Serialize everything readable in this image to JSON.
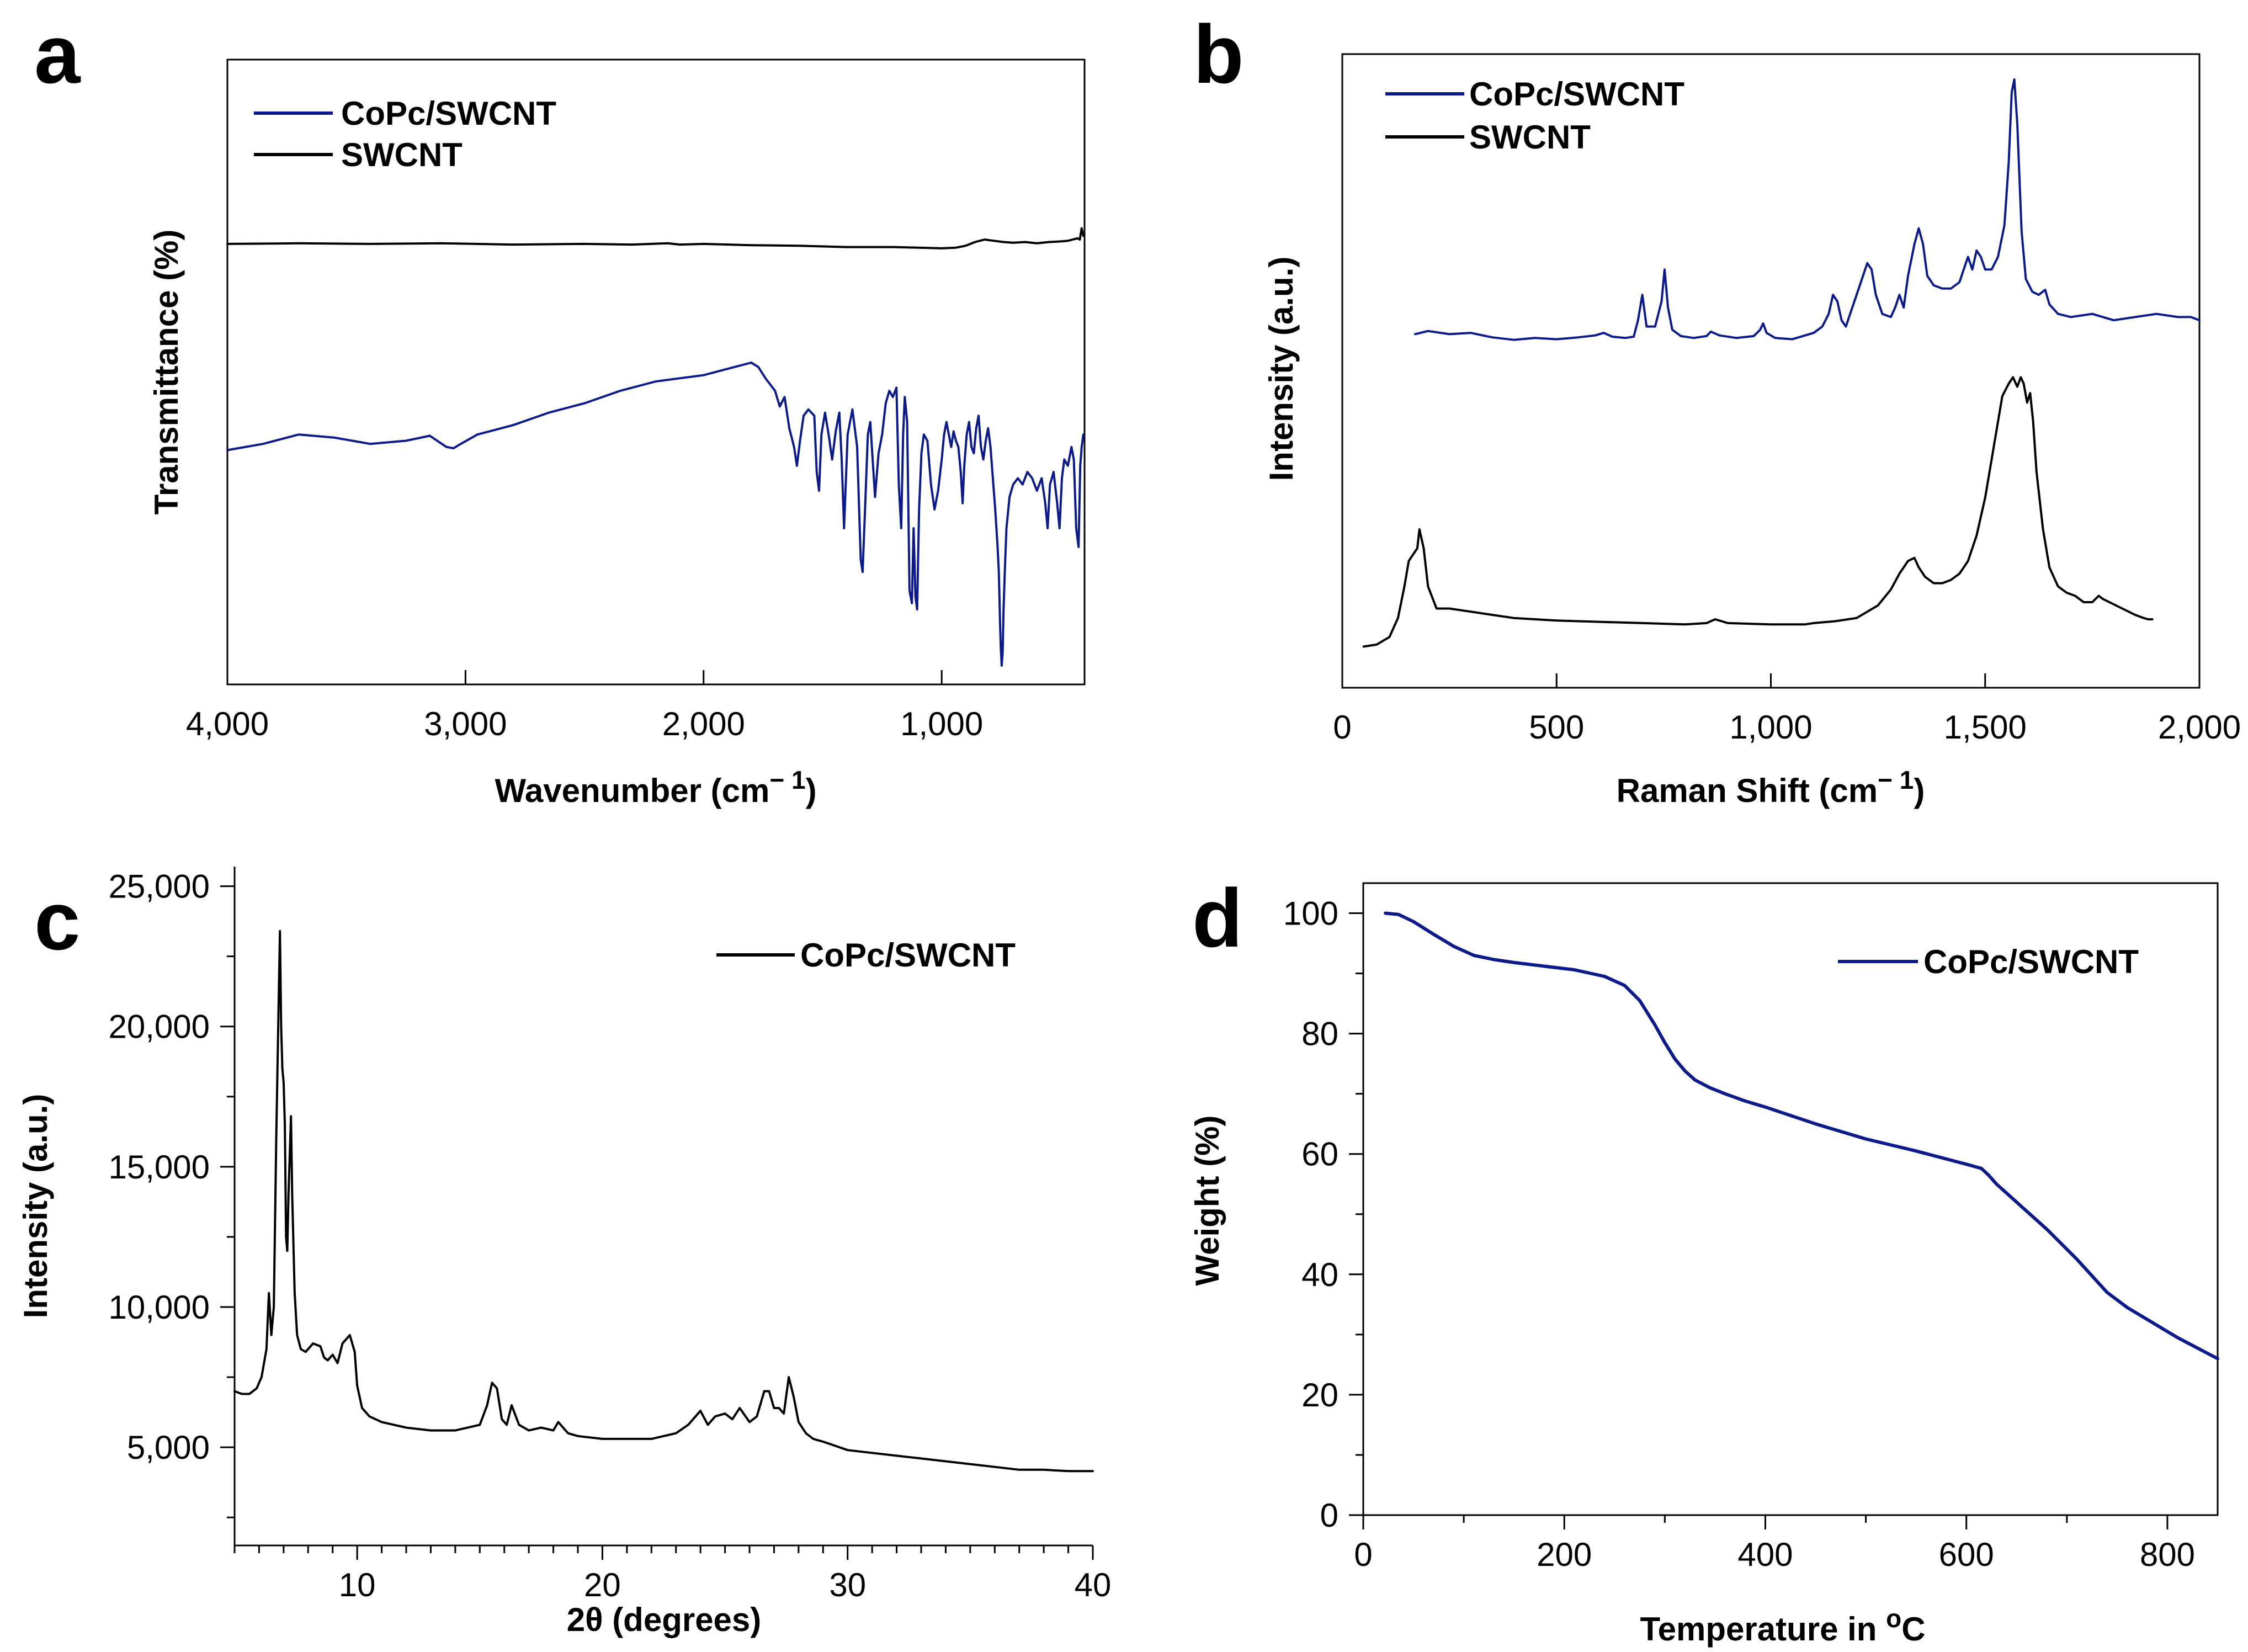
{
  "figure": {
    "panels": [
      "a",
      "b",
      "c",
      "d"
    ]
  },
  "chart_data": [
    {
      "id": "a",
      "type": "line",
      "panel_label": "a",
      "xlabel": "Wavenumber (cm",
      "xlabel_sup": "− 1",
      "xlabel_end": ")",
      "ylabel": "Transmittance (%)",
      "xlim": [
        4000,
        400
      ],
      "ylim": [
        0,
        100
      ],
      "xticks": [
        4000,
        3000,
        2000,
        1000
      ],
      "xtick_labels": [
        "4,000",
        "3,000",
        "2,000",
        "1,000"
      ],
      "yticks_shown": false,
      "legend_position": "top-left",
      "series": [
        {
          "name": "CoPc/SWCNT",
          "color": "#0c1a8a",
          "x": [
            4000,
            3850,
            3700,
            3550,
            3400,
            3250,
            3150,
            3080,
            3050,
            3020,
            2950,
            2800,
            2650,
            2500,
            2350,
            2200,
            2100,
            2000,
            1900,
            1800,
            1770,
            1740,
            1700,
            1680,
            1660,
            1640,
            1620,
            1608,
            1595,
            1580,
            1560,
            1535,
            1525,
            1515,
            1505,
            1490,
            1475,
            1460,
            1445,
            1430,
            1420,
            1410,
            1395,
            1375,
            1355,
            1340,
            1332,
            1322,
            1310,
            1300,
            1290,
            1280,
            1265,
            1250,
            1235,
            1220,
            1205,
            1190,
            1180,
            1170,
            1162,
            1155,
            1145,
            1135,
            1125,
            1118,
            1110,
            1103,
            1095,
            1085,
            1075,
            1060,
            1045,
            1030,
            1015,
            1000,
            990,
            980,
            970,
            960,
            950,
            940,
            930,
            920,
            912,
            905,
            895,
            885,
            875,
            865,
            855,
            845,
            835,
            825,
            815,
            805,
            795,
            785,
            775,
            765,
            760,
            755,
            752,
            748,
            744,
            740,
            735,
            728,
            715,
            700,
            680,
            660,
            640,
            620,
            600,
            580,
            565,
            555,
            545,
            530,
            515,
            505,
            495,
            485,
            470,
            455,
            445,
            435,
            425,
            418,
            412,
            405
          ],
          "y": [
            37.5,
            38.5,
            40.0,
            39.5,
            38.5,
            39.0,
            39.8,
            38.0,
            37.8,
            38.5,
            40.0,
            41.5,
            43.5,
            45.0,
            47.0,
            48.5,
            49.0,
            49.5,
            50.5,
            51.5,
            50.8,
            49.0,
            47.0,
            44.5,
            46.0,
            41.0,
            38.0,
            35.0,
            39.0,
            43.0,
            44.0,
            43.0,
            34.0,
            31.0,
            40.0,
            43.5,
            40.0,
            36.0,
            40.5,
            43.5,
            36.0,
            25.0,
            40.0,
            44.0,
            38.0,
            20.0,
            18.0,
            28.0,
            40.0,
            42.0,
            36.0,
            30.0,
            37.0,
            40.0,
            45.0,
            47.0,
            46.0,
            47.5,
            32.0,
            25.0,
            40.0,
            46.0,
            42.0,
            15.0,
            13.0,
            25.0,
            14.0,
            12.0,
            28.0,
            37.0,
            40.0,
            39.0,
            32.0,
            28.0,
            31.0,
            36.0,
            40.0,
            42.0,
            40.0,
            38.0,
            40.5,
            39.0,
            38.0,
            34.0,
            29.0,
            35.0,
            40.0,
            42.0,
            38.0,
            37.0,
            41.0,
            43.0,
            38.0,
            36.0,
            39.0,
            41.0,
            38.0,
            33.0,
            28.0,
            22.0,
            18.0,
            10.0,
            6.0,
            3.0,
            5.0,
            12.0,
            18.0,
            25.0,
            30.0,
            32.0,
            33.0,
            32.0,
            34.0,
            33.0,
            31.0,
            33.0,
            29.0,
            25.0,
            32.0,
            34.0,
            29.0,
            25.0,
            33.0,
            36.0,
            35.0,
            38.0,
            36.0,
            25.0,
            22.0,
            35.0,
            38.0,
            40.0
          ]
        },
        {
          "name": "SWCNT",
          "color": "#000000",
          "x": [
            4000,
            3700,
            3400,
            3100,
            2800,
            2500,
            2300,
            2150,
            2100,
            2000,
            1800,
            1600,
            1400,
            1200,
            1000,
            940,
            900,
            860,
            820,
            780,
            740,
            700,
            650,
            600,
            550,
            500,
            470,
            450,
            430,
            420,
            412,
            405
          ],
          "y": [
            70.5,
            70.6,
            70.5,
            70.6,
            70.4,
            70.5,
            70.4,
            70.6,
            70.4,
            70.5,
            70.3,
            70.2,
            70.0,
            70.0,
            69.8,
            69.9,
            70.2,
            70.8,
            71.2,
            71.0,
            70.8,
            70.7,
            70.8,
            70.6,
            70.8,
            70.9,
            71.0,
            71.2,
            71.4,
            71.2,
            73.0,
            71.8
          ]
        }
      ]
    },
    {
      "id": "b",
      "type": "line",
      "panel_label": "b",
      "xlabel": "Raman Shift (cm",
      "xlabel_sup": "− 1",
      "xlabel_end": ")",
      "ylabel": "Intensity (a.u.)",
      "xlim": [
        0,
        2000
      ],
      "ylim": [
        0,
        100
      ],
      "xticks": [
        0,
        500,
        1000,
        1500,
        2000
      ],
      "xtick_labels": [
        "0",
        "500",
        "1,000",
        "1,500",
        "2,000"
      ],
      "yticks_shown": false,
      "legend_position": "top-left",
      "series": [
        {
          "name": "CoPc/SWCNT",
          "color": "#0c1a8a",
          "x": [
            170,
            200,
            250,
            300,
            350,
            400,
            450,
            500,
            550,
            590,
            610,
            630,
            660,
            680,
            690,
            700,
            710,
            730,
            745,
            752,
            760,
            770,
            790,
            820,
            850,
            860,
            880,
            920,
            960,
            975,
            982,
            990,
            1010,
            1050,
            1100,
            1120,
            1135,
            1145,
            1155,
            1165,
            1175,
            1190,
            1210,
            1225,
            1235,
            1245,
            1260,
            1280,
            1290,
            1300,
            1310,
            1320,
            1335,
            1345,
            1355,
            1365,
            1380,
            1400,
            1420,
            1440,
            1450,
            1460,
            1470,
            1480,
            1490,
            1500,
            1515,
            1530,
            1545,
            1555,
            1562,
            1568,
            1575,
            1585,
            1595,
            1610,
            1625,
            1640,
            1650,
            1670,
            1700,
            1750,
            1800,
            1850,
            1900,
            1950,
            1980,
            2000
          ],
          "y": [
            55.8,
            56.3,
            55.8,
            56.0,
            55.3,
            54.9,
            55.2,
            55.0,
            55.3,
            55.6,
            56.0,
            55.4,
            55.2,
            55.4,
            58.0,
            62.0,
            57.0,
            57.0,
            61.0,
            66.0,
            60.0,
            56.5,
            55.5,
            55.2,
            55.5,
            56.2,
            55.6,
            55.2,
            55.5,
            56.5,
            57.5,
            56.0,
            55.2,
            55.0,
            56.0,
            57.0,
            59.0,
            62.0,
            61.0,
            58.0,
            57.0,
            60.0,
            64.0,
            67.0,
            66.0,
            62.0,
            59.0,
            58.5,
            60.0,
            62.0,
            60.0,
            65.0,
            70.0,
            72.5,
            70.0,
            65.0,
            63.5,
            63.0,
            63.0,
            64.0,
            66.0,
            68.0,
            66.0,
            69.0,
            68.0,
            66.0,
            66.0,
            68.0,
            73.0,
            83.0,
            94.0,
            96.0,
            89.0,
            72.0,
            64.5,
            62.5,
            62.0,
            62.8,
            60.5,
            59.0,
            58.5,
            59.0,
            58.0,
            58.5,
            59.0,
            58.5,
            58.5,
            58.0
          ]
        },
        {
          "name": "SWCNT",
          "color": "#000000",
          "x": [
            50,
            80,
            110,
            130,
            145,
            155,
            165,
            175,
            180,
            190,
            200,
            220,
            250,
            300,
            350,
            400,
            450,
            500,
            600,
            700,
            800,
            850,
            870,
            900,
            1000,
            1050,
            1080,
            1100,
            1150,
            1200,
            1250,
            1280,
            1300,
            1320,
            1335,
            1345,
            1360,
            1380,
            1400,
            1420,
            1440,
            1460,
            1480,
            1500,
            1520,
            1540,
            1555,
            1565,
            1575,
            1583,
            1590,
            1598,
            1605,
            1612,
            1620,
            1635,
            1650,
            1670,
            1690,
            1710,
            1730,
            1750,
            1765,
            1775,
            1790,
            1820,
            1850,
            1870,
            1880,
            1890
          ],
          "y": [
            6.5,
            6.8,
            8.0,
            11.0,
            16.0,
            20.0,
            21.0,
            22.0,
            25.0,
            22.0,
            16.0,
            12.5,
            12.5,
            12.0,
            11.5,
            11.0,
            10.8,
            10.6,
            10.4,
            10.2,
            10.0,
            10.2,
            10.8,
            10.2,
            10.0,
            10.0,
            10.0,
            10.2,
            10.5,
            11.0,
            13.0,
            15.5,
            18.0,
            20.0,
            20.5,
            19.0,
            17.5,
            16.5,
            16.5,
            17.0,
            18.0,
            20.0,
            24.0,
            30.0,
            38.0,
            46.0,
            48.0,
            49.0,
            47.5,
            49.0,
            48.0,
            45.0,
            46.5,
            42.0,
            34.0,
            25.0,
            19.0,
            16.0,
            15.0,
            14.5,
            13.5,
            13.5,
            14.5,
            14.0,
            13.5,
            12.5,
            11.5,
            11.0,
            10.8,
            10.8
          ]
        }
      ]
    },
    {
      "id": "c",
      "type": "line",
      "panel_label": "c",
      "xlabel": "2θ (degrees)",
      "ylabel": "Intensity (a.u.)",
      "xlim": [
        5,
        40
      ],
      "ylim": [
        1500,
        25700
      ],
      "xticks": [
        10,
        20,
        30,
        40
      ],
      "xtick_labels": [
        "10",
        "20",
        "30",
        "40"
      ],
      "yticks": [
        5000,
        10000,
        15000,
        20000,
        25000
      ],
      "ytick_labels": [
        "5,000",
        "10,000",
        "15,000",
        "20,000",
        "25,000"
      ],
      "legend_position": "top-right",
      "series": [
        {
          "name": "CoPc/SWCNT",
          "color": "#000000",
          "x": [
            5.0,
            5.3,
            5.6,
            5.9,
            6.1,
            6.3,
            6.4,
            6.5,
            6.6,
            6.7,
            6.8,
            6.85,
            6.9,
            6.95,
            7.0,
            7.05,
            7.1,
            7.15,
            7.2,
            7.3,
            7.35,
            7.45,
            7.55,
            7.7,
            7.9,
            8.2,
            8.5,
            8.65,
            8.8,
            9.0,
            9.2,
            9.4,
            9.7,
            9.9,
            10.0,
            10.2,
            10.5,
            11.0,
            12.0,
            13.0,
            14.0,
            15.0,
            15.3,
            15.5,
            15.7,
            15.9,
            16.1,
            16.3,
            16.6,
            17.0,
            17.5,
            18.0,
            18.2,
            18.6,
            19.0,
            20.0,
            21.0,
            22.0,
            23.0,
            23.5,
            24.0,
            24.3,
            24.6,
            25.0,
            25.3,
            25.6,
            26.0,
            26.3,
            26.6,
            26.8,
            27.0,
            27.2,
            27.4,
            27.6,
            27.8,
            28.0,
            28.3,
            28.6,
            29.0,
            30.0,
            31.0,
            32.0,
            33.0,
            34.0,
            35.0,
            36.0,
            37.0,
            38.0,
            39.0,
            40.0
          ],
          "y": [
            7000,
            6900,
            6900,
            7100,
            7500,
            8500,
            10500,
            9000,
            10000,
            16000,
            21000,
            23400,
            20000,
            18500,
            18000,
            16500,
            12500,
            12000,
            14000,
            16800,
            14000,
            10500,
            9000,
            8500,
            8400,
            8700,
            8600,
            8200,
            8100,
            8300,
            8000,
            8700,
            9000,
            8400,
            7200,
            6400,
            6100,
            5900,
            5700,
            5600,
            5600,
            5800,
            6500,
            7300,
            7100,
            6000,
            5800,
            6500,
            5800,
            5600,
            5700,
            5600,
            5900,
            5500,
            5400,
            5300,
            5300,
            5300,
            5500,
            5800,
            6300,
            5800,
            6100,
            6200,
            6000,
            6400,
            5900,
            6100,
            7000,
            7000,
            6400,
            6400,
            6200,
            7500,
            6800,
            5900,
            5500,
            5300,
            5200,
            4900,
            4800,
            4700,
            4600,
            4500,
            4400,
            4300,
            4200,
            4200,
            4150,
            4150
          ]
        }
      ]
    },
    {
      "id": "d",
      "type": "line",
      "panel_label": "d",
      "xlabel": "Temperature in ",
      "xlabel_sup": "o",
      "xlabel_end": "C",
      "ylabel": "Weight (%)",
      "xlim": [
        0,
        850
      ],
      "ylim": [
        0,
        105
      ],
      "xticks": [
        0,
        200,
        400,
        600,
        800
      ],
      "xtick_labels": [
        "0",
        "200",
        "400",
        "600",
        "800"
      ],
      "yticks": [
        0,
        20,
        40,
        60,
        80,
        100
      ],
      "ytick_labels": [
        "0",
        "20",
        "40",
        "60",
        "80",
        "100"
      ],
      "legend_position": "top-right",
      "series": [
        {
          "name": "CoPc/SWCNT",
          "color": "#0c1a8a",
          "x": [
            22,
            35,
            50,
            70,
            90,
            110,
            130,
            150,
            180,
            210,
            240,
            260,
            275,
            290,
            300,
            310,
            320,
            330,
            345,
            360,
            380,
            400,
            450,
            500,
            550,
            600,
            615,
            622,
            630,
            650,
            680,
            710,
            740,
            760,
            780,
            810,
            850
          ],
          "y": [
            100,
            99.8,
            98.6,
            96.5,
            94.5,
            93.0,
            92.3,
            91.8,
            91.2,
            90.6,
            89.5,
            88.0,
            85.5,
            81.5,
            78.5,
            75.8,
            73.8,
            72.3,
            71.0,
            70.0,
            68.8,
            67.8,
            65.0,
            62.5,
            60.5,
            58.3,
            57.6,
            56.5,
            55.0,
            52.0,
            47.5,
            42.5,
            37.0,
            34.5,
            32.5,
            29.5,
            26.0
          ]
        }
      ]
    }
  ]
}
